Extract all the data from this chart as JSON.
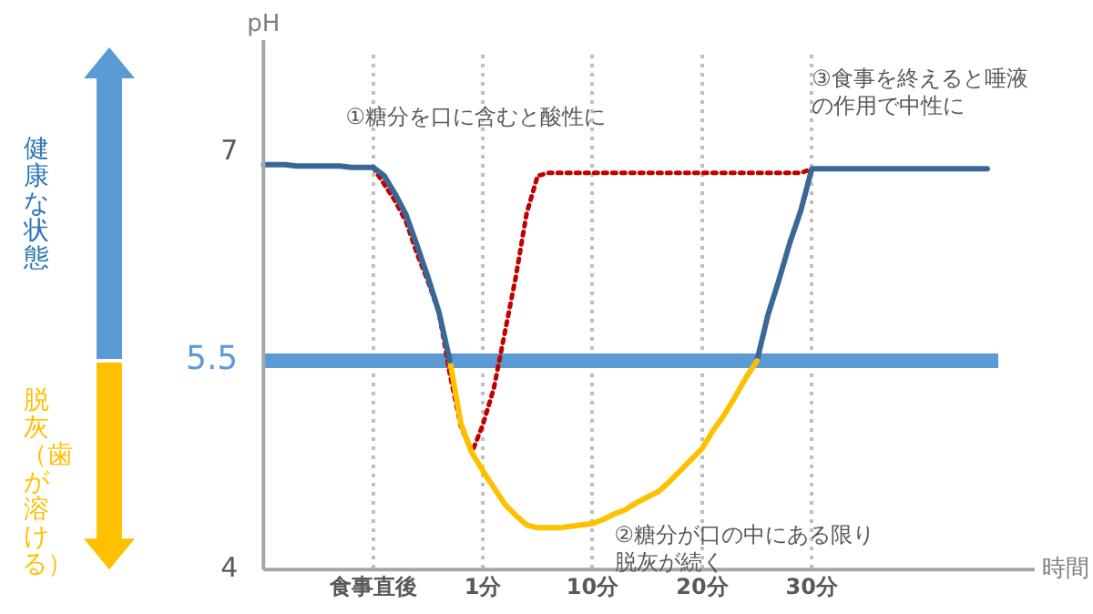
{
  "chart_data": {
    "type": "line",
    "xlabel": "時間",
    "ylabel": "pH",
    "categories": [
      null,
      null,
      null,
      null,
      null,
      null,
      null,
      null,
      null,
      null,
      "食事直後",
      null,
      null,
      null,
      null,
      null,
      null,
      null,
      null,
      null,
      "1分",
      null,
      null,
      null,
      null,
      null,
      null,
      null,
      null,
      null,
      "10分",
      null,
      null,
      null,
      null,
      null,
      null,
      null,
      null,
      null,
      "20分",
      null,
      null,
      null,
      null,
      null,
      null,
      null,
      null,
      null,
      "30分",
      null,
      null,
      null,
      null,
      null,
      null,
      null,
      null,
      null,
      null,
      null,
      null,
      null,
      null,
      null,
      null,
      null
    ],
    "ylim": [
      4,
      7.7
    ],
    "yticks": [
      4,
      5.5,
      7
    ],
    "grid": "x",
    "series": [
      {
        "color": "#3b6796",
        "values": [
          6.91,
          6.91,
          6.91,
          6.9,
          6.9,
          6.9,
          6.9,
          6.9,
          6.89,
          6.89,
          6.89,
          6.83,
          6.7,
          6.55,
          6.33,
          6.1,
          5.85,
          5.5,
          null,
          null,
          null,
          null,
          null,
          null,
          null,
          null,
          null,
          null,
          null,
          null,
          null,
          null,
          null,
          null,
          null,
          null,
          null,
          null,
          null,
          null,
          null,
          null,
          null,
          null,
          null,
          null,
          null,
          null,
          null,
          null,
          null,
          null,
          null,
          null,
          null,
          null,
          null,
          null,
          null,
          null,
          null,
          null,
          null,
          null,
          null,
          null,
          null,
          null
        ]
      },
      {
        "color": "#ffc000",
        "values": [
          null,
          null,
          null,
          null,
          null,
          null,
          null,
          null,
          null,
          null,
          null,
          null,
          null,
          null,
          null,
          null,
          null,
          5.5,
          5.05,
          4.84,
          4.71,
          4.59,
          4.47,
          4.39,
          4.32,
          4.3,
          4.3,
          4.3,
          4.31,
          4.32,
          4.33,
          4.36,
          4.4,
          4.43,
          4.48,
          4.52,
          4.56,
          4.63,
          4.71,
          4.79,
          4.87,
          5.0,
          5.11,
          5.24,
          5.38,
          5.5,
          null,
          null,
          null,
          null,
          null,
          null,
          null,
          null,
          null,
          null,
          null,
          null,
          null,
          null,
          null,
          null,
          null,
          null,
          null,
          null,
          null,
          null
        ]
      },
      {
        "color": "#3b6796",
        "values": [
          null,
          null,
          null,
          null,
          null,
          null,
          null,
          null,
          null,
          null,
          null,
          null,
          null,
          null,
          null,
          null,
          null,
          null,
          null,
          null,
          null,
          null,
          null,
          null,
          null,
          null,
          null,
          null,
          null,
          null,
          null,
          null,
          null,
          null,
          null,
          null,
          null,
          null,
          null,
          null,
          null,
          null,
          null,
          null,
          null,
          5.5,
          5.83,
          6.08,
          6.35,
          6.58,
          6.88,
          6.88,
          6.88,
          6.88,
          6.88,
          6.88,
          6.88,
          6.88,
          6.88,
          6.88,
          6.88,
          6.88,
          6.88,
          6.88,
          6.88,
          6.88,
          6.88,
          null
        ]
      },
      {
        "color": "#c00000",
        "line_style": "dotted",
        "values": [
          null,
          null,
          null,
          null,
          null,
          null,
          null,
          null,
          null,
          null,
          6.89,
          6.77,
          6.65,
          6.5,
          6.27,
          6.07,
          5.85,
          5.4,
          5.03,
          4.84,
          5.04,
          5.3,
          5.7,
          6.1,
          6.56,
          6.83,
          6.85,
          6.85,
          6.85,
          6.85,
          6.85,
          6.85,
          6.85,
          6.85,
          6.85,
          6.85,
          6.85,
          6.85,
          6.85,
          6.85,
          6.85,
          6.85,
          6.85,
          6.85,
          6.85,
          6.85,
          6.85,
          6.85,
          6.85,
          6.85,
          6.88,
          null,
          null,
          null,
          null,
          null,
          null,
          null,
          null,
          null,
          null,
          null,
          null,
          null,
          null,
          null,
          null,
          null
        ]
      }
    ],
    "ref_lines": [
      {
        "axis": "y",
        "value": 5.5,
        "color": "#5b9bd5"
      }
    ],
    "annotations": [
      "①糖分を口に含むと酸性に",
      "②糖分が口の中にある限り脱灰が続く",
      "③食事を終えると唾液の作用で中性に",
      "健康な状態",
      "脱灰（歯が溶ける）"
    ]
  }
}
